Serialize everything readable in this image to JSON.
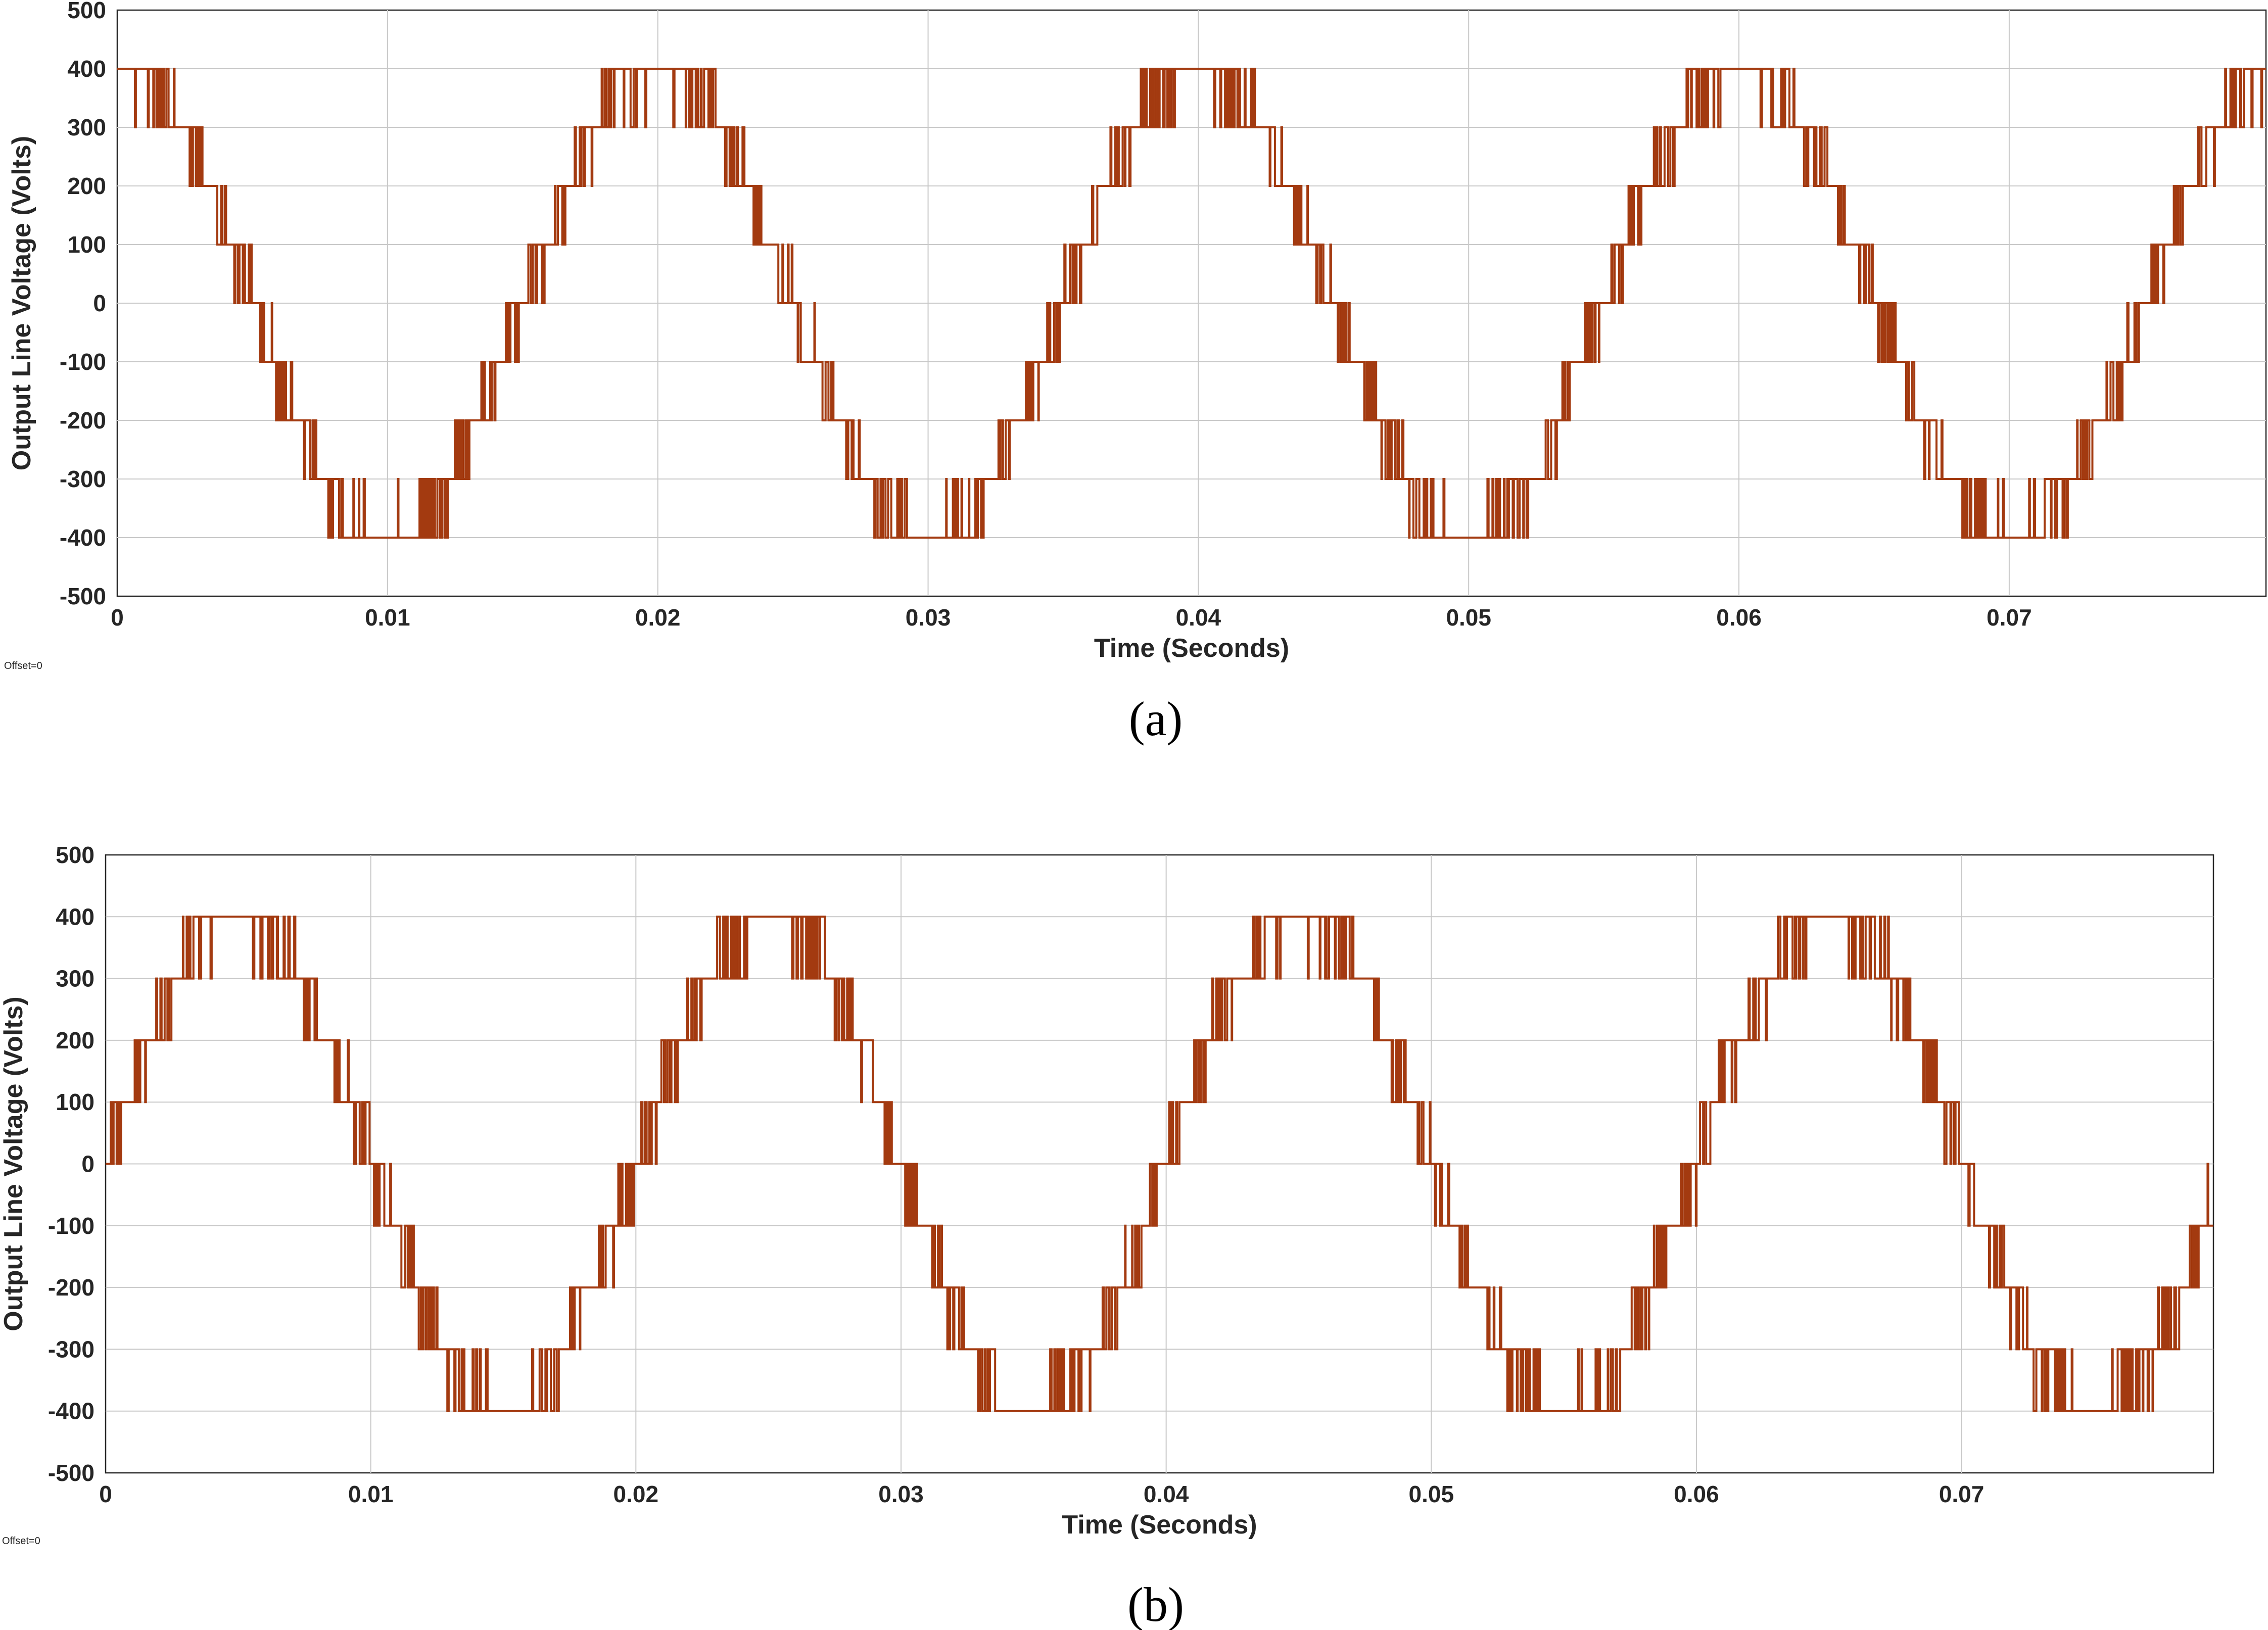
{
  "colors": {
    "trace": "#a33a10",
    "grid": "#c8c8c8",
    "axis": "#262626"
  },
  "chart_data": [
    {
      "type": "line",
      "caption": "(a)",
      "offset_label": "Offset=0",
      "xlabel": "Time (Seconds)",
      "ylabel": "Output Line Voltage (Volts)",
      "xlim": [
        0,
        0.0795
      ],
      "ylim": [
        -500,
        500
      ],
      "x_ticks": [
        0,
        0.01,
        0.02,
        0.03,
        0.04,
        0.05,
        0.06,
        0.07
      ],
      "x_tick_labels": [
        "0",
        "0.01",
        "0.02",
        "0.03",
        "0.04",
        "0.05",
        "0.06",
        "0.07"
      ],
      "y_ticks": [
        500,
        400,
        300,
        200,
        100,
        0,
        -100,
        -200,
        -300,
        -400,
        -500
      ],
      "y_tick_labels": [
        "500",
        "400",
        "300",
        "200",
        "100",
        "0",
        "-100",
        "-200",
        "-300",
        "-400",
        "-500"
      ],
      "grid": true,
      "series": [
        {
          "frequency_hz": 50,
          "phase_deg": 90,
          "step_v": 100,
          "peak_levels": [
            400,
            -400
          ],
          "waveform": "staircase-pwm"
        }
      ]
    },
    {
      "type": "line",
      "caption": "(b)",
      "offset_label": "Offset=0",
      "xlabel": "Time (Seconds)",
      "ylabel": "Output Line Voltage (Volts)",
      "xlim": [
        0,
        0.0795
      ],
      "ylim": [
        -500,
        500
      ],
      "x_ticks": [
        0,
        0.01,
        0.02,
        0.03,
        0.04,
        0.05,
        0.06,
        0.07
      ],
      "x_tick_labels": [
        "0",
        "0.01",
        "0.02",
        "0.03",
        "0.04",
        "0.05",
        "0.06",
        "0.07"
      ],
      "y_ticks": [
        500,
        400,
        300,
        200,
        100,
        0,
        -100,
        -200,
        -300,
        -400,
        -500
      ],
      "y_tick_labels": [
        "500",
        "400",
        "300",
        "200",
        "100",
        "0",
        "-100",
        "-200",
        "-300",
        "-400",
        "-500"
      ],
      "grid": true,
      "series": [
        {
          "frequency_hz": 50,
          "phase_deg": 0,
          "step_v": 100,
          "peak_levels": [
            400,
            -400
          ],
          "waveform": "staircase-pwm"
        }
      ]
    }
  ]
}
